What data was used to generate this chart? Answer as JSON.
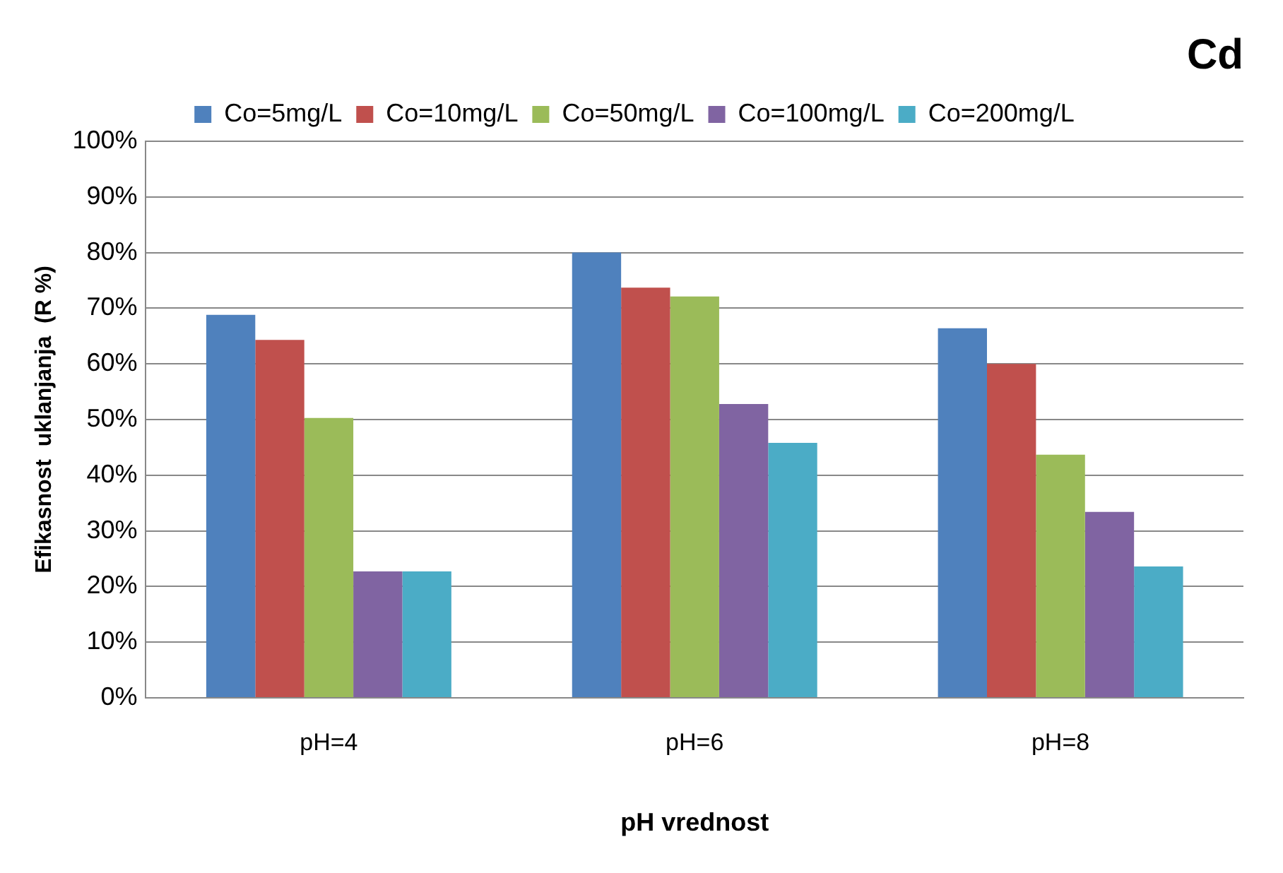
{
  "chart_data": {
    "type": "bar",
    "title": "Cd",
    "xlabel": "pH vrednost",
    "ylabel": "Efikasnost  uklanjanja  (R %)",
    "categories": [
      "pH=4",
      "pH=6",
      "pH=8"
    ],
    "series": [
      {
        "name": "Co=5mg/L",
        "color": "#4f81bd",
        "values": [
          68.8,
          80,
          66.4
        ]
      },
      {
        "name": "Co=10mg/L",
        "color": "#c0504d",
        "values": [
          64.3,
          73.7,
          60
        ]
      },
      {
        "name": "Co=50mg/L",
        "color": "#9bbb59",
        "values": [
          50.3,
          72.1,
          43.7
        ]
      },
      {
        "name": "Co=100mg/L",
        "color": "#8064a2",
        "values": [
          22.7,
          52.8,
          33.4
        ]
      },
      {
        "name": "Co=200mg/L",
        "color": "#4bacc6",
        "values": [
          22.7,
          45.8,
          23.6
        ]
      }
    ],
    "ylim": [
      0,
      100
    ],
    "yticks": [
      {
        "value": 0,
        "label": "0%"
      },
      {
        "value": 10,
        "label": "10%"
      },
      {
        "value": 20,
        "label": "20%"
      },
      {
        "value": 30,
        "label": "30%"
      },
      {
        "value": 40,
        "label": "40%"
      },
      {
        "value": 50,
        "label": "50%"
      },
      {
        "value": 60,
        "label": "60%"
      },
      {
        "value": 70,
        "label": "70%"
      },
      {
        "value": 80,
        "label": "80%"
      },
      {
        "value": 90,
        "label": "90%"
      },
      {
        "value": 100,
        "label": "100%"
      }
    ],
    "grid": "y",
    "legend": "top"
  }
}
